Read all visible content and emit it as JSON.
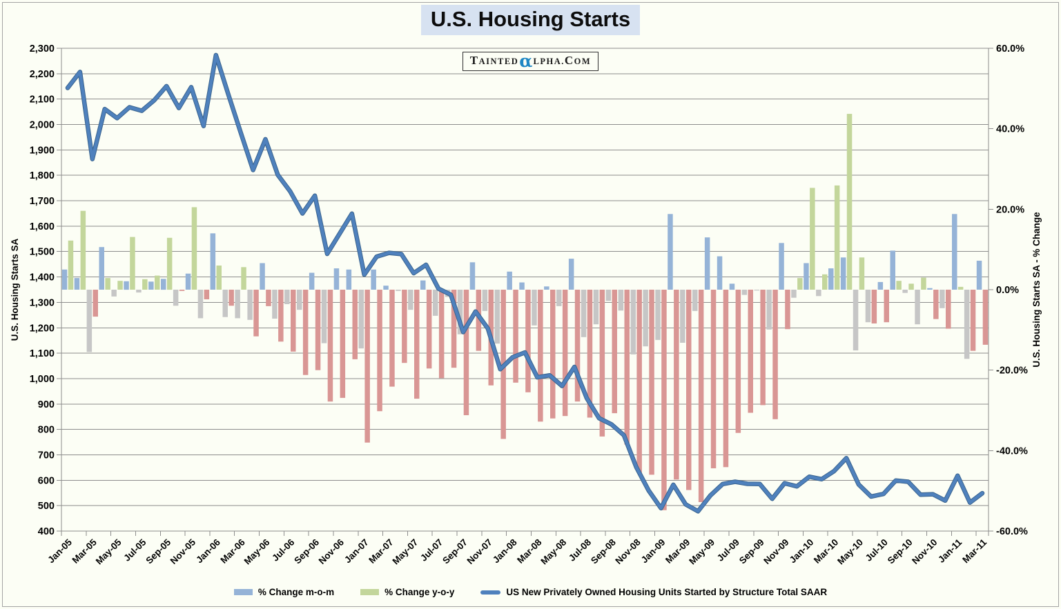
{
  "logo": {
    "part1": "TAINTED",
    "alpha": "α",
    "part2": "LPHA.",
    "part3": "COM",
    "alpha_color": "#1E87C4"
  },
  "chart_data": {
    "type": "combo",
    "title": "U.S. Housing Starts",
    "x": [
      "Jan-05",
      "Feb-05",
      "Mar-05",
      "Apr-05",
      "May-05",
      "Jun-05",
      "Jul-05",
      "Aug-05",
      "Sep-05",
      "Oct-05",
      "Nov-05",
      "Dec-05",
      "Jan-06",
      "Feb-06",
      "Mar-06",
      "Apr-06",
      "May-06",
      "Jun-06",
      "Jul-06",
      "Aug-06",
      "Sep-06",
      "Oct-06",
      "Nov-06",
      "Dec-06",
      "Jan-07",
      "Feb-07",
      "Mar-07",
      "Apr-07",
      "May-07",
      "Jun-07",
      "Jul-07",
      "Aug-07",
      "Sep-07",
      "Oct-07",
      "Nov-07",
      "Dec-07",
      "Jan-08",
      "Feb-08",
      "Mar-08",
      "Apr-08",
      "May-08",
      "Jun-08",
      "Jul-08",
      "Aug-08",
      "Sep-08",
      "Oct-08",
      "Nov-08",
      "Dec-08",
      "Jan-09",
      "Feb-09",
      "Mar-09",
      "Apr-09",
      "May-09",
      "Jun-09",
      "Jul-09",
      "Aug-09",
      "Sep-09",
      "Oct-09",
      "Nov-09",
      "Dec-09",
      "Jan-10",
      "Feb-10",
      "Mar-10",
      "Apr-10",
      "May-10",
      "Jun-10",
      "Jul-10",
      "Aug-10",
      "Sep-10",
      "Oct-10",
      "Nov-10",
      "Dec-10",
      "Jan-11",
      "Feb-11",
      "Mar-11"
    ],
    "series": [
      {
        "name": "% Change m-o-m",
        "type": "bar",
        "axis": "right",
        "color_pos": "#95B3D7",
        "color_neg": "#C6C6C6",
        "values": [
          5.0,
          2.9,
          -15.5,
          10.6,
          -1.7,
          2.1,
          -0.7,
          2.0,
          2.7,
          -4.0,
          4.0,
          -7.1,
          14.0,
          -6.8,
          -7.1,
          -7.5,
          6.6,
          -7.2,
          -3.6,
          -5.0,
          4.2,
          -13.3,
          5.3,
          5.0,
          -14.6,
          5.0,
          1.0,
          -0.3,
          -5.0,
          2.3,
          -6.5,
          -1.8,
          -11.1,
          6.8,
          -5.3,
          -13.4,
          4.5,
          1.8,
          -8.9,
          0.8,
          -4.1,
          7.7,
          -11.8,
          -8.6,
          -2.8,
          -5.2,
          -16.1,
          -14.1,
          -12.5,
          18.8,
          -13.2,
          -5.3,
          13.0,
          8.3,
          1.5,
          -1.3,
          -0.2,
          -9.9,
          11.6,
          -2.0,
          6.6,
          -1.6,
          5.3,
          8.0,
          -15.1,
          -8.1,
          1.9,
          9.7,
          -0.8,
          -8.6,
          0.4,
          -4.6,
          18.8,
          -17.2,
          7.2
        ]
      },
      {
        "name": "% Change y-o-y",
        "type": "bar",
        "axis": "right",
        "color_pos": "#C3D69B",
        "color_neg": "#D99694",
        "values": [
          12.2,
          19.6,
          -6.7,
          2.9,
          2.2,
          13.1,
          2.6,
          3.5,
          12.9,
          -0.3,
          20.5,
          -2.4,
          6.0,
          -4.0,
          5.6,
          -11.6,
          -4.1,
          -12.9,
          -15.4,
          -21.2,
          -20.0,
          -27.8,
          -26.9,
          -17.3,
          -38.0,
          -30.2,
          -24.1,
          -18.2,
          -27.1,
          -19.6,
          -22.0,
          -19.4,
          -31.2,
          -15.2,
          -23.8,
          -37.1,
          -23.1,
          -25.5,
          -32.8,
          -32.0,
          -31.4,
          -27.8,
          -31.8,
          -36.5,
          -30.7,
          -38.5,
          -45.5,
          -46.0,
          -54.8,
          -47.2,
          -49.8,
          -52.8,
          -44.4,
          -44.1,
          -35.6,
          -30.6,
          -28.7,
          -32.2,
          -9.8,
          2.9,
          25.3,
          3.8,
          25.9,
          43.7,
          8.0,
          -8.4,
          -8.1,
          2.2,
          1.5,
          3.0,
          -7.3,
          -9.7,
          0.7,
          -15.2,
          -13.7
        ]
      },
      {
        "name": "US New Privately Owned Housing Units Started by Structure Total SAAR",
        "type": "line",
        "axis": "left",
        "color": "#4F81BD",
        "edge_color": "#3A648E",
        "values": [
          2144,
          2207,
          1864,
          2061,
          2025,
          2068,
          2054,
          2095,
          2151,
          2065,
          2147,
          1994,
          2273,
          2119,
          1969,
          1821,
          1942,
          1802,
          1737,
          1650,
          1720,
          1491,
          1570,
          1649,
          1409,
          1480,
          1495,
          1490,
          1415,
          1448,
          1354,
          1330,
          1183,
          1264,
          1197,
          1037,
          1084,
          1103,
          1005,
          1013,
          971,
          1046,
          923,
          844,
          820,
          777,
          652,
          560,
          490,
          582,
          505,
          478,
          540,
          585,
          594,
          586,
          585,
          527,
          588,
          576,
          614,
          604,
          636,
          687,
          583,
          536,
          546,
          599,
          594,
          543,
          545,
          520,
          618,
          512,
          549
        ]
      }
    ],
    "left_axis": {
      "title": "U.S. Housing Starts SA",
      "min": 400,
      "max": 2300,
      "step": 100,
      "tick_labels": [
        "2,300",
        "2,200",
        "2,100",
        "2,000",
        "1,900",
        "1,800",
        "1,700",
        "1,600",
        "1,500",
        "1,400",
        "1,300",
        "1,200",
        "1,100",
        "1,000",
        "900",
        "800",
        "700",
        "600",
        "500",
        "400"
      ]
    },
    "right_axis": {
      "title": "U.S. Housing Starts SA - % Change",
      "min": -60,
      "max": 60,
      "step": 20,
      "tick_labels": [
        "60.0%",
        "40.0%",
        "20.0%",
        "0.0%",
        "-20.0%",
        "-40.0%",
        "-60.0%"
      ]
    },
    "x_axis": {
      "label_interval": 2,
      "tick_labels": [
        "Jan-05",
        "Mar-05",
        "May-05",
        "Jul-05",
        "Sep-05",
        "Nov-05",
        "Jan-06",
        "Mar-06",
        "May-06",
        "Jul-06",
        "Sep-06",
        "Nov-06",
        "Jan-07",
        "Mar-07",
        "May-07",
        "Jul-07",
        "Sep-07",
        "Nov-07",
        "Jan-08",
        "Mar-08",
        "May-08",
        "Jul-08",
        "Sep-08",
        "Nov-08",
        "Jan-09",
        "Mar-09",
        "May-09",
        "Jul-09",
        "Sep-09",
        "Nov-09",
        "Jan-10",
        "Mar-10",
        "May-10",
        "Jul-10",
        "Sep-10",
        "Nov-10",
        "Jan-11",
        "Mar-11"
      ]
    },
    "gridline_color": "#8C8C8C",
    "legend_position": "bottom"
  }
}
